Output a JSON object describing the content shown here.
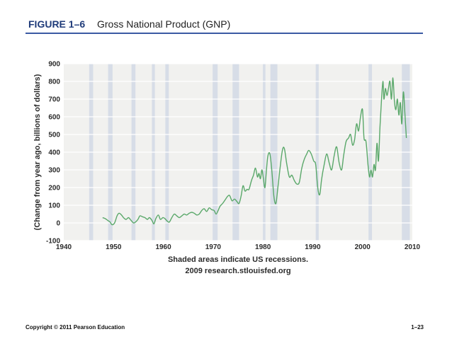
{
  "header": {
    "figure_label": "FIGURE 1–6",
    "figure_title": "Gross National Product (GNP)"
  },
  "footer": {
    "copyright": "Copyright © 2011 Pearson Education",
    "page_number": "1–23"
  },
  "colors": {
    "line": "#5aa86a",
    "recession": "#d7dde7",
    "plot_bg": "#f1f1ef",
    "grid": "#ffffff"
  },
  "chart_data": {
    "type": "line",
    "title": "Gross National Product (GNP)",
    "ylabel": "(Change from year ago, billions of dollars)",
    "xlabel": "Shaded areas indicate US recessions.",
    "source": "2009 research.stlouisfed.org",
    "xlim": [
      1940,
      2010
    ],
    "ylim": [
      -100,
      900
    ],
    "x_ticks": [
      1940,
      1950,
      1960,
      1970,
      1980,
      1990,
      2000,
      2010
    ],
    "y_ticks": [
      -100,
      0,
      100,
      200,
      300,
      400,
      500,
      600,
      700,
      800,
      900
    ],
    "y_tick_labels": [
      "-100",
      "0",
      "100",
      "200",
      "300",
      "400",
      "500",
      "600",
      "700",
      "800",
      "900"
    ],
    "recessions": [
      [
        1945.1,
        1945.9
      ],
      [
        1948.9,
        1949.8
      ],
      [
        1953.6,
        1954.4
      ],
      [
        1957.7,
        1958.3
      ],
      [
        1960.4,
        1961.1
      ],
      [
        1969.9,
        1970.9
      ],
      [
        1973.9,
        1975.2
      ],
      [
        1980.0,
        1980.5
      ],
      [
        1981.5,
        1982.9
      ],
      [
        1990.6,
        1991.2
      ],
      [
        2001.2,
        2001.9
      ],
      [
        2007.9,
        2009.5
      ]
    ],
    "series": [
      {
        "name": "GNP change from year ago",
        "x": [
          1947.8,
          1948.3,
          1948.8,
          1949.3,
          1949.7,
          1950.2,
          1950.7,
          1951.1,
          1951.6,
          1952.0,
          1952.5,
          1953.0,
          1953.5,
          1954.0,
          1954.4,
          1954.9,
          1955.3,
          1955.8,
          1956.3,
          1956.8,
          1957.2,
          1957.7,
          1958.1,
          1958.5,
          1959.0,
          1959.4,
          1959.9,
          1960.3,
          1960.8,
          1961.2,
          1961.7,
          1962.2,
          1962.7,
          1963.2,
          1963.7,
          1964.2,
          1964.7,
          1965.2,
          1965.7,
          1966.2,
          1966.7,
          1967.2,
          1967.7,
          1968.2,
          1968.7,
          1969.2,
          1969.7,
          1970.2,
          1970.6,
          1971.0,
          1971.4,
          1971.9,
          1972.4,
          1972.9,
          1973.3,
          1973.8,
          1974.3,
          1974.8,
          1975.2,
          1975.6,
          1976.0,
          1976.4,
          1976.8,
          1977.2,
          1977.7,
          1978.1,
          1978.5,
          1978.9,
          1979.2,
          1979.5,
          1979.8,
          1980.1,
          1980.4,
          1980.7,
          1981.0,
          1981.4,
          1981.8,
          1982.2,
          1982.6,
          1983.0,
          1983.4,
          1983.9,
          1984.3,
          1984.8,
          1985.3,
          1985.8,
          1986.3,
          1986.8,
          1987.3,
          1987.8,
          1988.3,
          1988.8,
          1989.2,
          1989.7,
          1990.2,
          1990.6,
          1991.0,
          1991.4,
          1991.8,
          1992.3,
          1992.8,
          1993.3,
          1993.8,
          1994.3,
          1994.8,
          1995.3,
          1995.8,
          1996.2,
          1996.7,
          1997.2,
          1997.6,
          1998.0,
          1998.4,
          1998.8,
          1999.2,
          1999.6,
          2000.0,
          2000.3,
          2000.7,
          2001.1,
          2001.4,
          2001.7,
          2002.0,
          2002.3,
          2002.6,
          2002.9,
          2003.2,
          2003.5,
          2003.8,
          2004.1,
          2004.3,
          2004.6,
          2004.9,
          2005.2,
          2005.5,
          2005.8,
          2006.1,
          2006.4,
          2006.7,
          2007.0,
          2007.3,
          2007.6,
          2007.9,
          2008.2,
          2008.5,
          2008.8
        ],
        "values": [
          30,
          25,
          15,
          5,
          -10,
          0,
          40,
          55,
          45,
          30,
          20,
          30,
          15,
          0,
          5,
          20,
          40,
          35,
          30,
          20,
          30,
          15,
          -5,
          25,
          45,
          20,
          30,
          25,
          10,
          5,
          30,
          50,
          40,
          30,
          40,
          50,
          45,
          55,
          60,
          55,
          45,
          50,
          70,
          80,
          65,
          85,
          75,
          70,
          50,
          70,
          95,
          110,
          130,
          150,
          155,
          125,
          135,
          120,
          110,
          150,
          210,
          180,
          190,
          190,
          240,
          270,
          310,
          260,
          280,
          250,
          300,
          250,
          200,
          300,
          380,
          390,
          290,
          150,
          110,
          200,
          300,
          410,
          420,
          330,
          260,
          270,
          240,
          220,
          230,
          310,
          360,
          390,
          410,
          390,
          350,
          330,
          200,
          160,
          250,
          330,
          390,
          340,
          300,
          380,
          430,
          340,
          300,
          380,
          460,
          480,
          500,
          440,
          470,
          560,
          520,
          600,
          640,
          480,
          460,
          330,
          260,
          300,
          260,
          330,
          300,
          450,
          350,
          540,
          690,
          800,
          700,
          760,
          720,
          760,
          800,
          700,
          820,
          690,
          640,
          700,
          610,
          680,
          560,
          740,
          620,
          480
        ]
      }
    ]
  }
}
